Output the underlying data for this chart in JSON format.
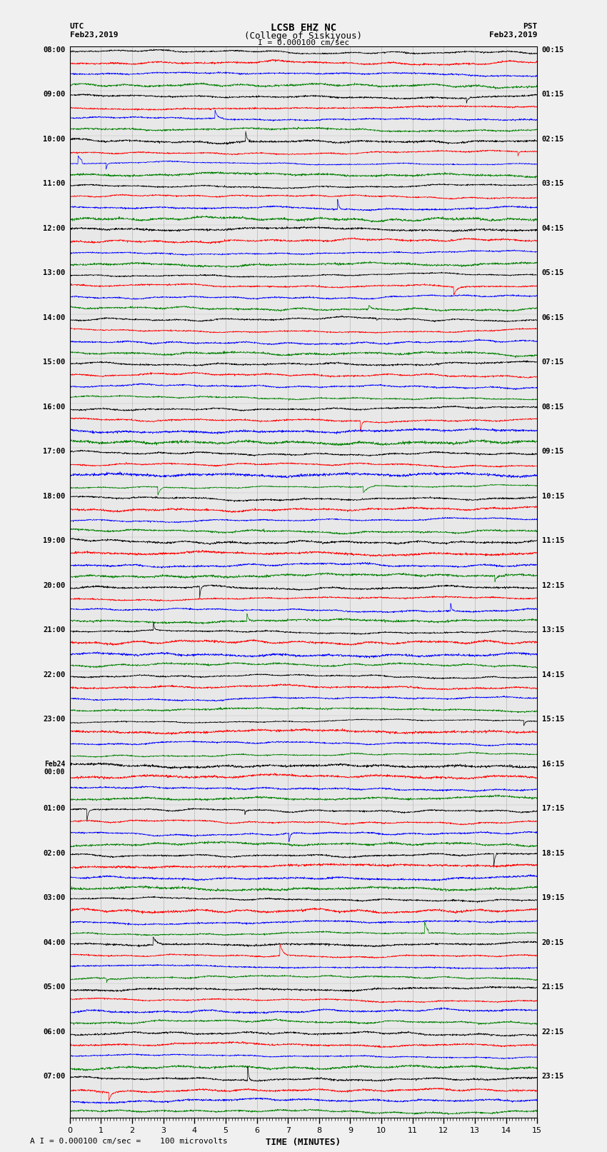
{
  "title_line1": "LCSB EHZ NC",
  "title_line2": "(College of Siskiyous)",
  "scale_label": "I = 0.000100 cm/sec",
  "bottom_label": "A I = 0.000100 cm/sec =    100 microvolts",
  "xlabel": "TIME (MINUTES)",
  "left_header_line1": "UTC",
  "left_header_line2": "Feb23,2019",
  "right_header_line1": "PST",
  "right_header_line2": "Feb23,2019",
  "left_times": [
    "08:00",
    "09:00",
    "10:00",
    "11:00",
    "12:00",
    "13:00",
    "14:00",
    "15:00",
    "16:00",
    "17:00",
    "18:00",
    "19:00",
    "20:00",
    "21:00",
    "22:00",
    "23:00",
    "Feb24\n00:00",
    "01:00",
    "02:00",
    "03:00",
    "04:00",
    "05:00",
    "06:00",
    "07:00"
  ],
  "right_times": [
    "00:15",
    "01:15",
    "02:15",
    "03:15",
    "04:15",
    "05:15",
    "06:15",
    "07:15",
    "08:15",
    "09:15",
    "10:15",
    "11:15",
    "12:15",
    "13:15",
    "14:15",
    "15:15",
    "16:15",
    "17:15",
    "18:15",
    "19:15",
    "20:15",
    "21:15",
    "22:15",
    "23:15"
  ],
  "trace_colors": [
    "black",
    "red",
    "blue",
    "green"
  ],
  "n_hours": 24,
  "traces_per_hour": 4,
  "bg_color": "#f0f0f0",
  "plot_bg_color": "#e8e8e8",
  "xlim": [
    0,
    15
  ],
  "xticks": [
    0,
    1,
    2,
    3,
    4,
    5,
    6,
    7,
    8,
    9,
    10,
    11,
    12,
    13,
    14,
    15
  ],
  "trace_amplitude": 0.38,
  "linewidth": 0.5
}
